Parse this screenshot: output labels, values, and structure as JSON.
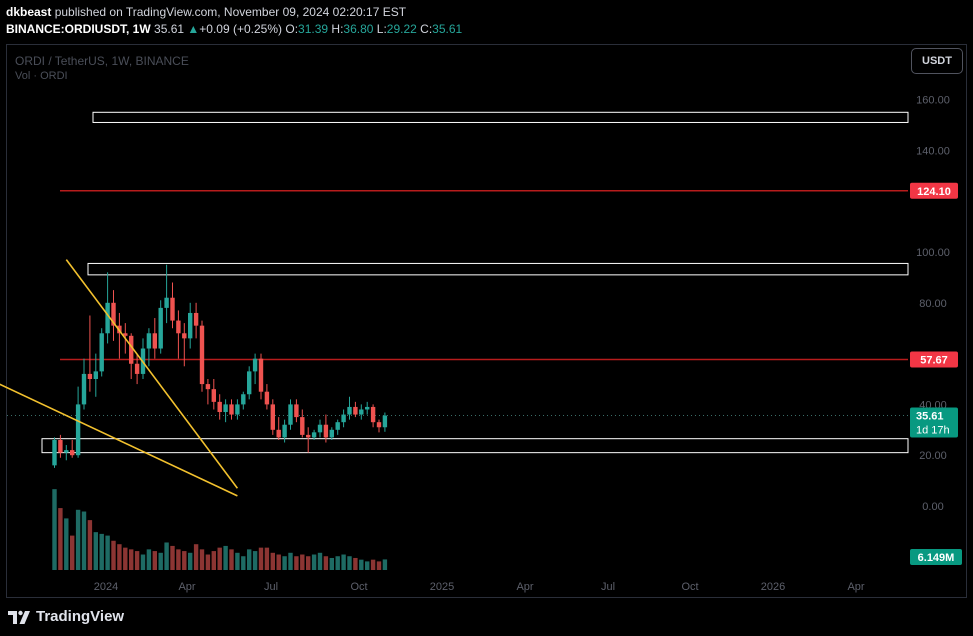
{
  "header": {
    "author": "dkbeast",
    "published_text": "published on TradingView.com, November 09, 2024 02:20:17 EST",
    "symbol_line": "BINANCE:ORDIUSDT, 1W",
    "last": "35.61",
    "change": "+0.09 (+0.25%)",
    "o_label": "O:",
    "o": "31.39",
    "h_label": "H:",
    "h": "36.80",
    "l_label": "L:",
    "l": "29.22",
    "c_label": "C:",
    "c": "35.61"
  },
  "legend": {
    "title": "ORDI / TetherUS, 1W, BINANCE",
    "vol": "Vol · ORDI"
  },
  "currency_button": "USDT",
  "colors": {
    "up": "#26a69a",
    "down": "#ef5350",
    "resistance": "#b71c1c",
    "wedge": "#f2c12e",
    "box": "#ffffff",
    "badge_red": "#f23645",
    "badge_green": "#089981"
  },
  "chart_data": {
    "type": "candlestick",
    "y_axis_ticks": [
      "160.00",
      "140.00",
      "100.00",
      "80.00",
      "40.00",
      "20.00",
      "0.00"
    ],
    "x_axis_ticks": [
      "2024",
      "Apr",
      "Jul",
      "Oct",
      "2025",
      "Apr",
      "Jul",
      "Oct",
      "2026",
      "Apr"
    ],
    "ylim": [
      0,
      170
    ],
    "price_lines": [
      {
        "label": "124.10",
        "value": 124.1
      },
      {
        "label": "57.67",
        "value": 57.67
      }
    ],
    "current_price": {
      "label": "35.61",
      "countdown": "1d 17h",
      "value": 35.61
    },
    "volume_label": "6.149M",
    "zones": [
      {
        "low": 151,
        "high": 155
      },
      {
        "low": 91,
        "high": 95.5
      },
      {
        "low": 21,
        "high": 26.5
      }
    ],
    "wedge_lines": [
      {
        "from": [
          2,
          97
        ],
        "to": [
          31,
          7
        ]
      },
      {
        "from": [
          -13,
          52
        ],
        "to": [
          31,
          4
        ]
      }
    ],
    "candles": [
      {
        "o": 16,
        "h": 27,
        "l": 15,
        "c": 26
      },
      {
        "o": 26,
        "h": 28,
        "l": 19,
        "c": 21
      },
      {
        "o": 21,
        "h": 24,
        "l": 18,
        "c": 22
      },
      {
        "o": 22,
        "h": 26,
        "l": 19,
        "c": 20
      },
      {
        "o": 20,
        "h": 47,
        "l": 19,
        "c": 40
      },
      {
        "o": 40,
        "h": 58,
        "l": 38,
        "c": 52
      },
      {
        "o": 52,
        "h": 75,
        "l": 45,
        "c": 50
      },
      {
        "o": 50,
        "h": 60,
        "l": 43,
        "c": 53
      },
      {
        "o": 53,
        "h": 70,
        "l": 51,
        "c": 68
      },
      {
        "o": 68,
        "h": 92,
        "l": 64,
        "c": 80
      },
      {
        "o": 80,
        "h": 85,
        "l": 65,
        "c": 71
      },
      {
        "o": 71,
        "h": 76,
        "l": 58,
        "c": 68
      },
      {
        "o": 68,
        "h": 72,
        "l": 60,
        "c": 67
      },
      {
        "o": 67,
        "h": 68,
        "l": 50,
        "c": 56
      },
      {
        "o": 56,
        "h": 60,
        "l": 48,
        "c": 52
      },
      {
        "o": 52,
        "h": 66,
        "l": 50,
        "c": 62
      },
      {
        "o": 62,
        "h": 70,
        "l": 55,
        "c": 68
      },
      {
        "o": 68,
        "h": 74,
        "l": 58,
        "c": 62
      },
      {
        "o": 62,
        "h": 81,
        "l": 60,
        "c": 78
      },
      {
        "o": 78,
        "h": 95,
        "l": 72,
        "c": 82
      },
      {
        "o": 82,
        "h": 88,
        "l": 70,
        "c": 73
      },
      {
        "o": 73,
        "h": 77,
        "l": 58,
        "c": 68
      },
      {
        "o": 68,
        "h": 72,
        "l": 55,
        "c": 66
      },
      {
        "o": 66,
        "h": 80,
        "l": 62,
        "c": 76
      },
      {
        "o": 76,
        "h": 80,
        "l": 66,
        "c": 71
      },
      {
        "o": 71,
        "h": 73,
        "l": 45,
        "c": 48
      },
      {
        "o": 48,
        "h": 50,
        "l": 40,
        "c": 46
      },
      {
        "o": 46,
        "h": 50,
        "l": 38,
        "c": 41
      },
      {
        "o": 41,
        "h": 44,
        "l": 34,
        "c": 37
      },
      {
        "o": 37,
        "h": 42,
        "l": 33,
        "c": 40
      },
      {
        "o": 40,
        "h": 42,
        "l": 34,
        "c": 36
      },
      {
        "o": 36,
        "h": 42,
        "l": 34,
        "c": 40
      },
      {
        "o": 40,
        "h": 45,
        "l": 38,
        "c": 44
      },
      {
        "o": 44,
        "h": 55,
        "l": 42,
        "c": 53
      },
      {
        "o": 53,
        "h": 60,
        "l": 48,
        "c": 58
      },
      {
        "o": 58,
        "h": 60,
        "l": 42,
        "c": 45
      },
      {
        "o": 45,
        "h": 48,
        "l": 38,
        "c": 40
      },
      {
        "o": 40,
        "h": 42,
        "l": 28,
        "c": 30
      },
      {
        "o": 30,
        "h": 35,
        "l": 26,
        "c": 27
      },
      {
        "o": 27,
        "h": 34,
        "l": 25,
        "c": 32
      },
      {
        "o": 32,
        "h": 42,
        "l": 30,
        "c": 40
      },
      {
        "o": 40,
        "h": 42,
        "l": 33,
        "c": 35
      },
      {
        "o": 35,
        "h": 38,
        "l": 27,
        "c": 28
      },
      {
        "o": 28,
        "h": 31,
        "l": 21,
        "c": 27
      },
      {
        "o": 27,
        "h": 30,
        "l": 26,
        "c": 29
      },
      {
        "o": 29,
        "h": 34,
        "l": 27,
        "c": 32
      },
      {
        "o": 32,
        "h": 36,
        "l": 25,
        "c": 27
      },
      {
        "o": 27,
        "h": 31,
        "l": 26,
        "c": 30
      },
      {
        "o": 30,
        "h": 34,
        "l": 28,
        "c": 33
      },
      {
        "o": 33,
        "h": 38,
        "l": 31,
        "c": 36
      },
      {
        "o": 36,
        "h": 43,
        "l": 34,
        "c": 39
      },
      {
        "o": 39,
        "h": 41,
        "l": 35,
        "c": 36
      },
      {
        "o": 36,
        "h": 40,
        "l": 34,
        "c": 38
      },
      {
        "o": 38,
        "h": 41,
        "l": 36,
        "c": 39
      },
      {
        "o": 39,
        "h": 40,
        "l": 31,
        "c": 33
      },
      {
        "o": 33,
        "h": 34,
        "l": 29,
        "c": 31
      },
      {
        "o": 31,
        "h": 36.8,
        "l": 29.22,
        "c": 35.61
      }
    ],
    "volumes_million": [
      47,
      36,
      30,
      20,
      35,
      34,
      29,
      22,
      21,
      20,
      17,
      15,
      13,
      12,
      11,
      9,
      12,
      11,
      10,
      16,
      14,
      12,
      11,
      10,
      15,
      12,
      9,
      11,
      13,
      14,
      12,
      10,
      8,
      12,
      11,
      13,
      13,
      10,
      9,
      8,
      10,
      8,
      9,
      8,
      9,
      10,
      8,
      7,
      8,
      9,
      8,
      7,
      6,
      5,
      6,
      5,
      6.149
    ]
  },
  "footer": {
    "brand": "TradingView"
  }
}
